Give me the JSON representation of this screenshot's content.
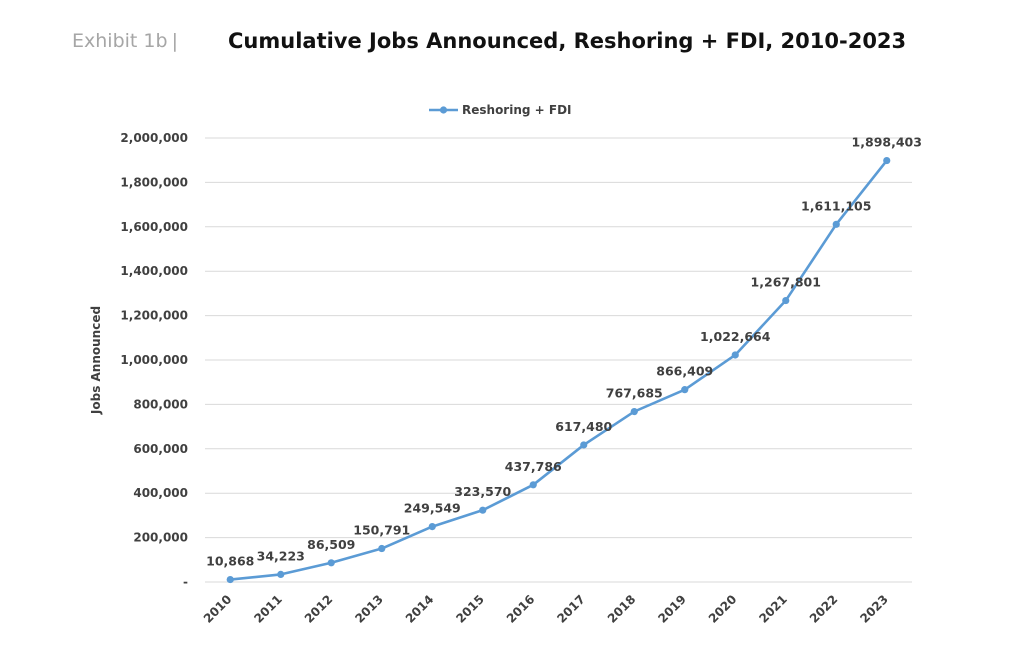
{
  "header": {
    "exhibit": "Exhibit 1b",
    "separator": "|",
    "title": "Cumulative Jobs Announced, Reshoring + FDI, 2010-2023"
  },
  "chart_data": {
    "type": "line",
    "title": "Cumulative Jobs Announced, Reshoring + FDI, 2010-2023",
    "xlabel": "",
    "ylabel": "Jobs Announced",
    "categories": [
      "2010",
      "2011",
      "2012",
      "2013",
      "2014",
      "2015",
      "2016",
      "2017",
      "2018",
      "2019",
      "2020",
      "2021",
      "2022",
      "2023"
    ],
    "series": [
      {
        "name": "Reshoring + FDI",
        "color": "#5b9bd5",
        "values": [
          10868,
          34223,
          86509,
          150791,
          249549,
          323570,
          437786,
          617480,
          767685,
          866409,
          1022664,
          1267801,
          1611105,
          1898403
        ],
        "labels": [
          "10,868",
          "34,223",
          "86,509",
          "150,791",
          "249,549",
          "323,570",
          "437,786",
          "617,480",
          "767,685",
          "866,409",
          "1,022,664",
          "1,267,801",
          "1,611,105",
          "1,898,403"
        ]
      }
    ],
    "ylim": [
      0,
      2000000
    ],
    "yticks": [
      0,
      200000,
      400000,
      600000,
      800000,
      1000000,
      1200000,
      1400000,
      1600000,
      1800000,
      2000000
    ],
    "ytick_labels": [
      "-",
      "200,000",
      "400,000",
      "600,000",
      "800,000",
      "1,000,000",
      "1,200,000",
      "1,400,000",
      "1,600,000",
      "1,800,000",
      "2,000,000"
    ],
    "grid": true,
    "legend": "top-center",
    "colors": {
      "line": "#5b9bd5",
      "grid": "#d9d9d9",
      "text": "#404040"
    }
  }
}
